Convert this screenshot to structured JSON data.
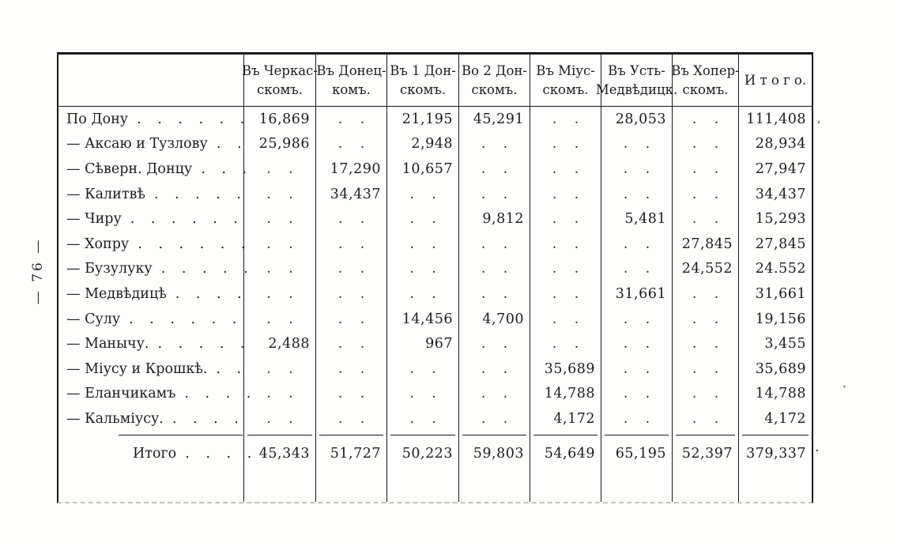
{
  "page": {
    "sideways_number": "— 76 —"
  },
  "table": {
    "header": {
      "cols": [
        [
          "Въ Черкас-",
          "скомъ."
        ],
        [
          "Въ Донец-",
          "комъ."
        ],
        [
          "Въ 1 Дон-",
          "скомъ."
        ],
        [
          "Во 2 Дон-",
          "скомъ."
        ],
        [
          "Въ Міус-",
          "скомъ."
        ],
        [
          "Въ Усть-",
          "Медвѣдицк."
        ],
        [
          "Въ Хопер-",
          "скомъ."
        ],
        [
          "И т о г о.",
          ""
        ]
      ]
    },
    "empty_marker": ". .",
    "rows": [
      {
        "label": "По Дону",
        "leader": ". . . . . .",
        "values": [
          "16,869",
          null,
          "21,195",
          "45,291",
          null,
          "28,053",
          null,
          "111,408"
        ]
      },
      {
        "label": "— Аксаю и Тузлову",
        "leader": ". .",
        "values": [
          "25,986",
          null,
          "2,948",
          null,
          null,
          null,
          null,
          "28,934"
        ]
      },
      {
        "label": "— Сѣверн. Донцу",
        "leader": ". . .",
        "values": [
          null,
          "17,290",
          "10,657",
          null,
          null,
          null,
          null,
          "27,947"
        ]
      },
      {
        "label": "— Калитвѣ",
        "leader": ". . . . .",
        "values": [
          null,
          "34,437",
          null,
          null,
          null,
          null,
          null,
          "34,437"
        ]
      },
      {
        "label": "— Чиру",
        "leader": ". . . . . .",
        "values": [
          null,
          null,
          null,
          "9,812",
          null,
          "5,481",
          null,
          "15,293"
        ]
      },
      {
        "label": "— Хопру",
        "leader": ". . . . . .",
        "values": [
          null,
          null,
          null,
          null,
          null,
          null,
          "27,845",
          "27,845"
        ]
      },
      {
        "label": "— Бузулуку",
        "leader": ". . . . .",
        "values": [
          null,
          null,
          null,
          null,
          null,
          null,
          "24,552",
          "24.552"
        ]
      },
      {
        "label": "— Медвѣдицѣ",
        "leader": ". . . .",
        "values": [
          null,
          null,
          null,
          null,
          null,
          "31,661",
          null,
          "31,661"
        ]
      },
      {
        "label": "— Сулу",
        "leader": ". . . . . .",
        "values": [
          null,
          null,
          "14,456",
          "4,700",
          null,
          null,
          null,
          "19,156"
        ]
      },
      {
        "label": "— Манычу.",
        "leader": ". . . . .",
        "values": [
          "2,488",
          null,
          "967",
          null,
          null,
          null,
          null,
          "3,455"
        ]
      },
      {
        "label": "— Міусу и Крошкѣ.",
        "leader": ". .",
        "values": [
          null,
          null,
          null,
          null,
          "35,689",
          null,
          null,
          "35,689"
        ]
      },
      {
        "label": "— Еланчикамъ",
        "leader": ". . . .",
        "values": [
          null,
          null,
          null,
          null,
          "14,788",
          null,
          null,
          "14,788"
        ]
      },
      {
        "label": "— Кальміусу.",
        "leader": ". . . .",
        "values": [
          null,
          null,
          null,
          null,
          "4,172",
          null,
          null,
          "4,172"
        ]
      }
    ],
    "totals": {
      "label": "Итого",
      "leader": ". . . .",
      "values": [
        "45,343",
        "51,727",
        "50,223",
        "59,803",
        "54,649",
        "65,195",
        "52,397",
        "379,337"
      ]
    }
  },
  "artifacts": {
    "speck_top_right": "ʼ",
    "speck_mid_right": "·",
    "speck_after_total": "·"
  }
}
